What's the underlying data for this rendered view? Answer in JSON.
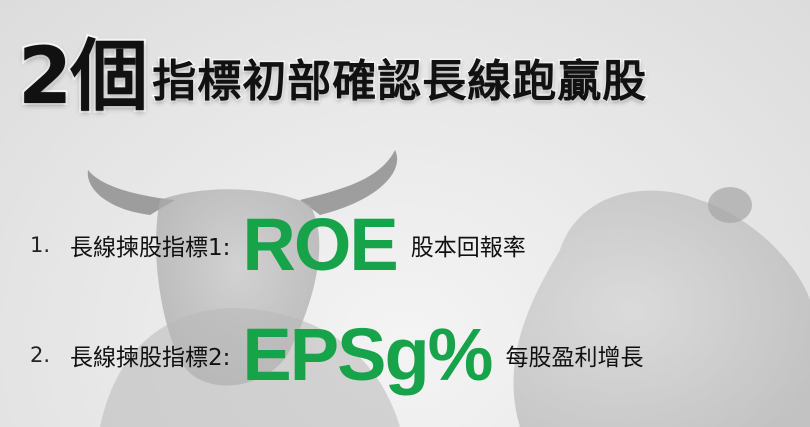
{
  "title": {
    "number": "2個",
    "text": "指標初部確認長線跑贏股"
  },
  "items": [
    {
      "num": "1.",
      "label": "長線揀股指標1:",
      "metric": "ROE",
      "desc": "股本回報率"
    },
    {
      "num": "2.",
      "label": "長線揀股指標2:",
      "metric": "EPSg%",
      "desc": "每股盈利增長"
    }
  ],
  "colors": {
    "accent": "#16a34a",
    "text": "#111111",
    "background": "#ececec"
  }
}
